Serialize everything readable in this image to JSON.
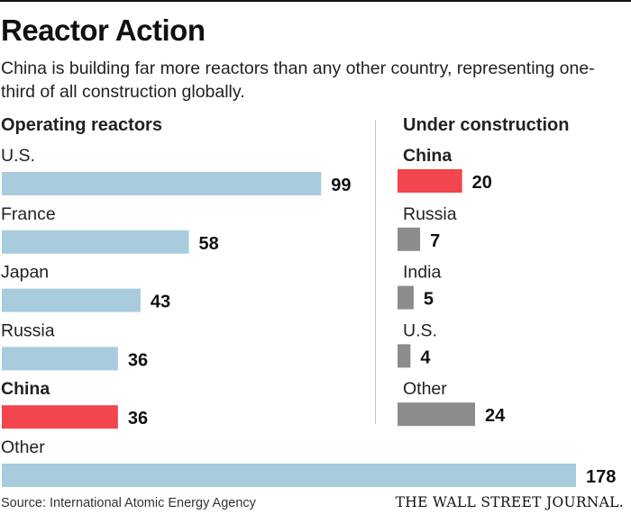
{
  "header": {
    "title": "Reactor Action",
    "subtitle": "China is building far more reactors than any other country, representing one-third of all construction globally."
  },
  "footer": {
    "source": "Source: International Atomic Energy Agency",
    "publisher": "THE WALL STREET JOURNAL."
  },
  "colors": {
    "default_bar_left": "#a8ccdd",
    "default_bar_right": "#8c8c8c",
    "highlight": "#f2454e"
  },
  "chart_data": [
    {
      "type": "bar",
      "orientation": "horizontal",
      "title": "Operating reactors",
      "categories": [
        "U.S.",
        "France",
        "Japan",
        "Russia",
        "China",
        "Other"
      ],
      "values": [
        99,
        58,
        43,
        36,
        36,
        178
      ],
      "highlight": "China",
      "xlim": [
        0,
        178
      ]
    },
    {
      "type": "bar",
      "orientation": "horizontal",
      "title": "Under construction",
      "categories": [
        "China",
        "Russia",
        "India",
        "U.S.",
        "Other"
      ],
      "values": [
        20,
        7,
        5,
        4,
        24
      ],
      "highlight": "China",
      "xlim": [
        0,
        24
      ]
    }
  ]
}
